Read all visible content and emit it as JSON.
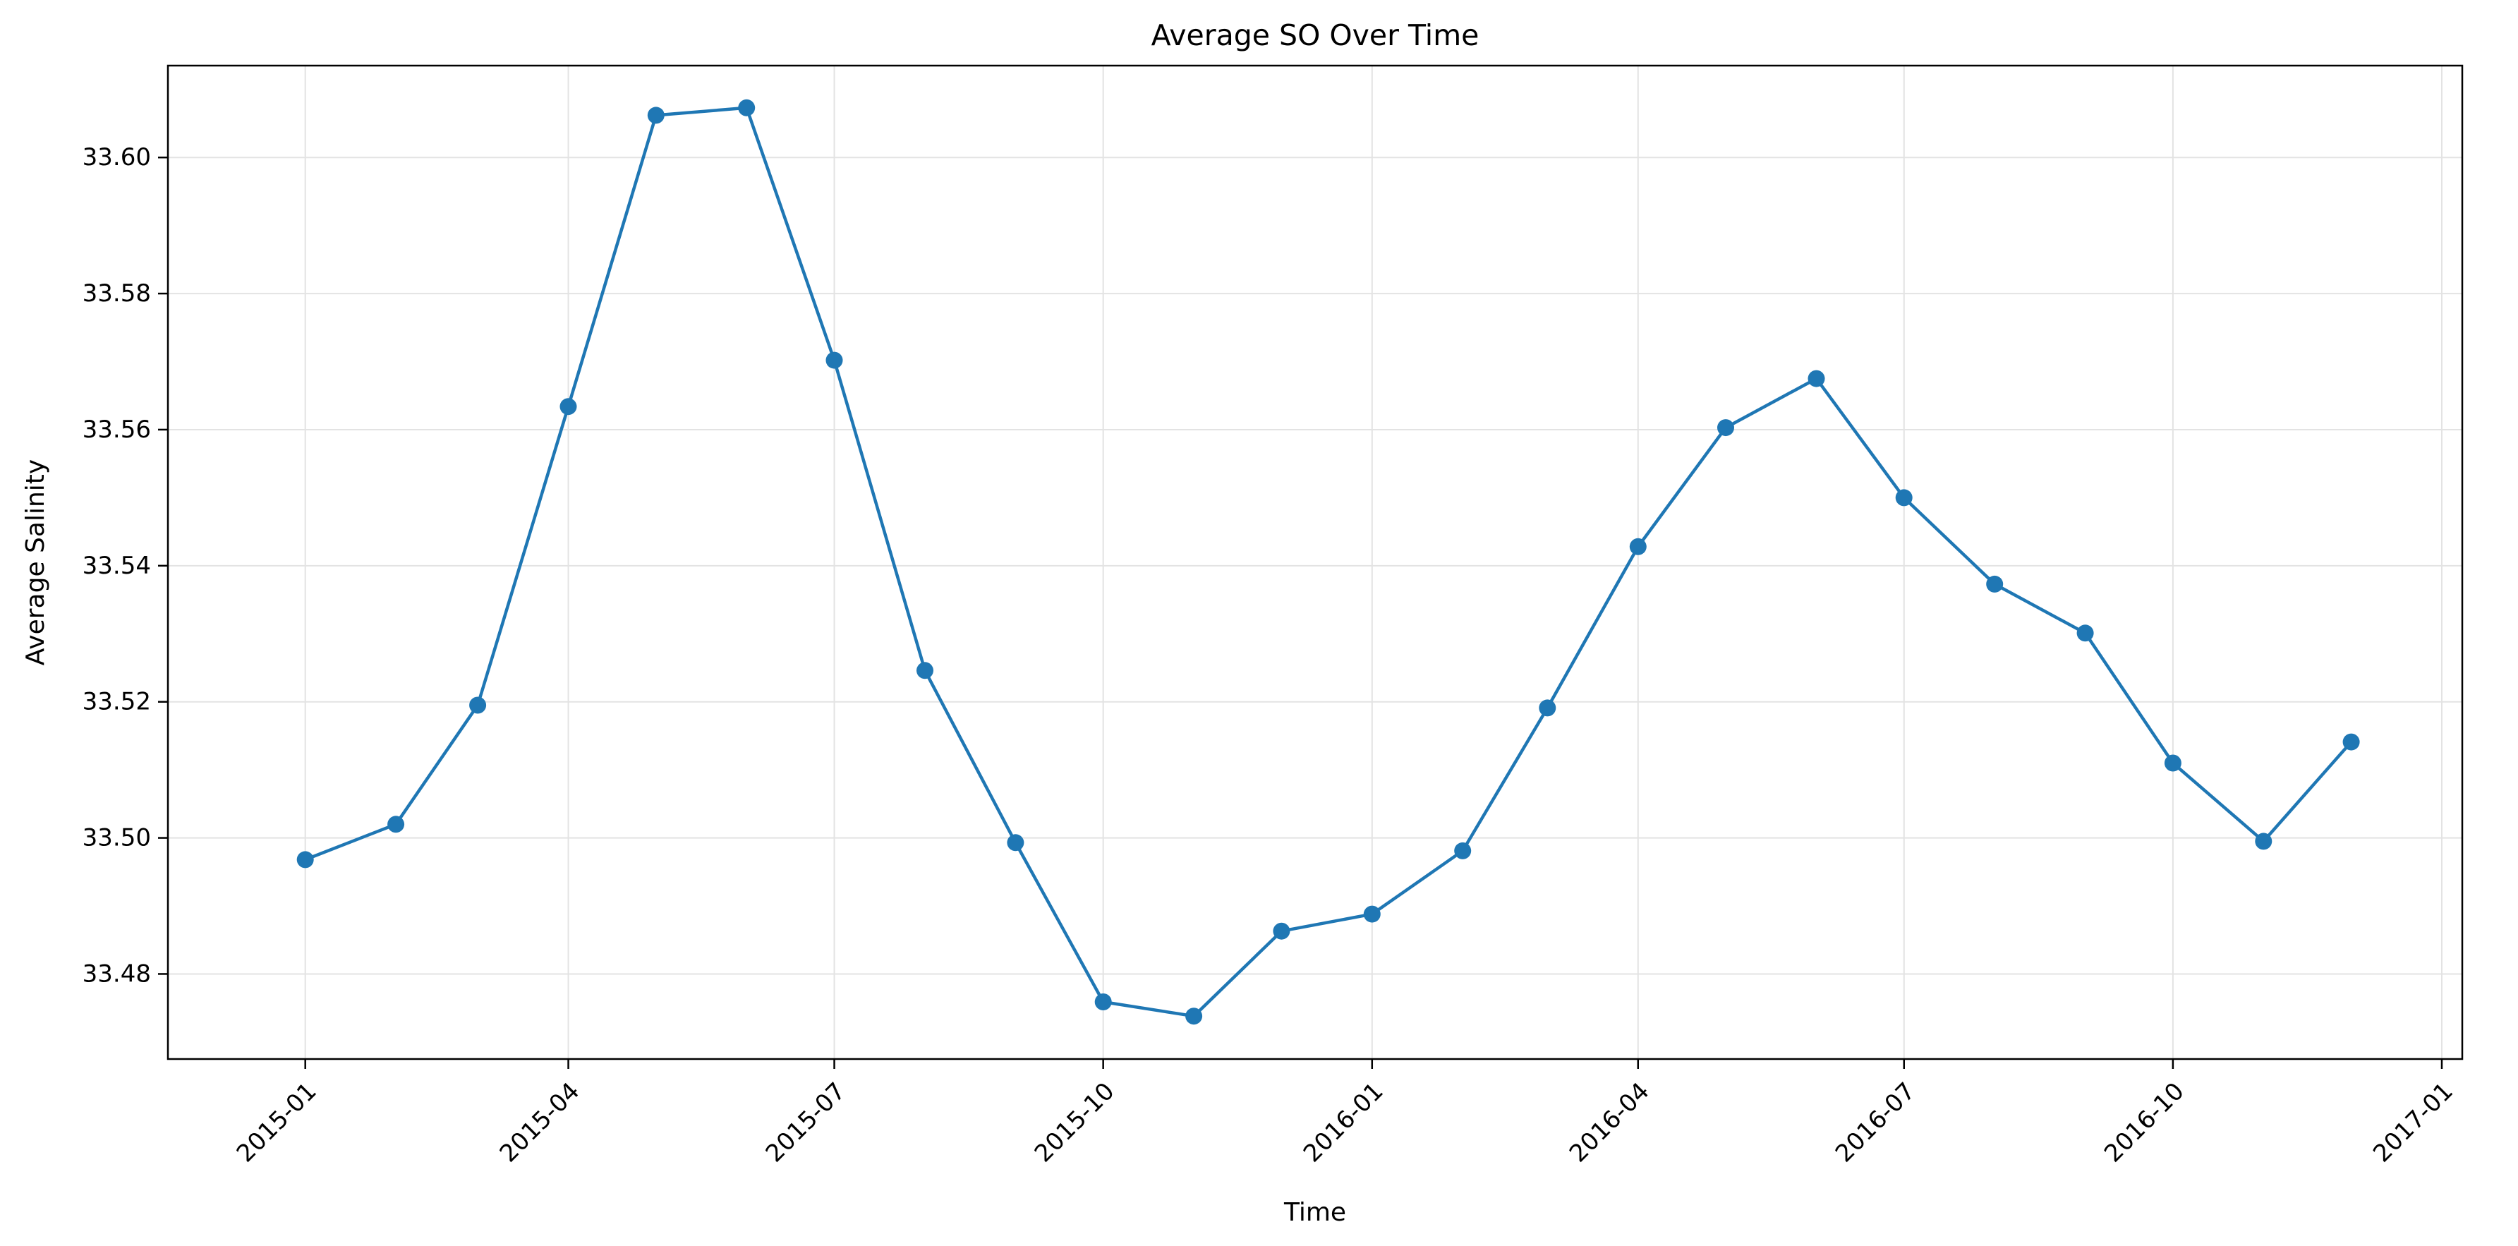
{
  "chart_data": {
    "type": "line",
    "title": "Average SO Over Time",
    "xlabel": "Time",
    "ylabel": "Average Salinity",
    "x_tick_labels": [
      "2015-01",
      "2015-04",
      "2015-07",
      "2015-10",
      "2016-01",
      "2016-04",
      "2016-07",
      "2016-10",
      "2017-01"
    ],
    "y_tick_labels": [
      "33.48",
      "33.50",
      "33.52",
      "33.54",
      "33.56",
      "33.58",
      "33.60"
    ],
    "y_ticks": [
      33.48,
      33.5,
      33.52,
      33.54,
      33.56,
      33.58,
      33.6
    ],
    "ylim": [
      33.4675,
      33.6135
    ],
    "xlim": [
      "2014-11-15",
      "2017-01-08"
    ],
    "grid": true,
    "marker": "circle",
    "x": [
      "2015-01-01",
      "2015-02-01",
      "2015-03-01",
      "2015-04-01",
      "2015-05-01",
      "2015-06-01",
      "2015-07-01",
      "2015-08-01",
      "2015-09-01",
      "2015-10-01",
      "2015-11-01",
      "2015-12-01",
      "2016-01-01",
      "2016-02-01",
      "2016-03-01",
      "2016-04-01",
      "2016-05-01",
      "2016-06-01",
      "2016-07-01",
      "2016-08-01",
      "2016-09-01",
      "2016-10-01",
      "2016-11-01",
      "2016-12-01"
    ],
    "series": [
      {
        "color": "#1f77b4",
        "values": [
          33.4968,
          33.502,
          33.5195,
          33.5634,
          33.6062,
          33.6073,
          33.5702,
          33.5246,
          33.4993,
          33.4759,
          33.4738,
          33.4863,
          33.4888,
          33.4981,
          33.5191,
          33.5428,
          33.5603,
          33.5675,
          33.55,
          33.5373,
          33.5301,
          33.511,
          33.4995,
          33.5141
        ]
      }
    ]
  }
}
